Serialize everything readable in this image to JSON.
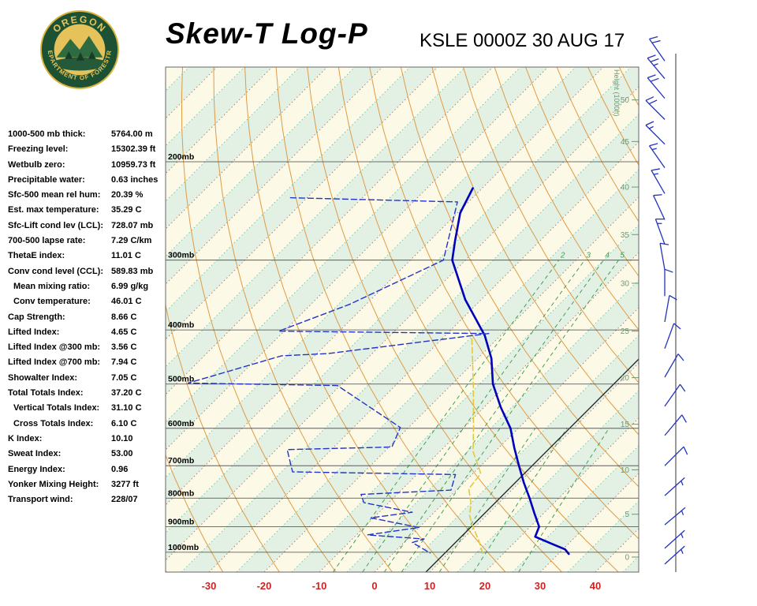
{
  "header": {
    "title": "Skew-T Log-P",
    "station": "KSLE 0000Z 30 AUG 17",
    "logo": {
      "top": "OREGON",
      "bottom": "DEPARTMENT OF FORESTRY"
    }
  },
  "indices": {
    "rows": [
      {
        "label": "1000-500 mb thick:",
        "value": "5764.00 m",
        "indent": false
      },
      {
        "label": "Freezing level:",
        "value": "15302.39 ft",
        "indent": false
      },
      {
        "label": "Wetbulb zero:",
        "value": "10959.73 ft",
        "indent": false
      },
      {
        "label": "Precipitable water:",
        "value": "0.63 inches",
        "indent": false
      },
      {
        "label": "Sfc-500 mean rel hum:",
        "value": "20.39 %",
        "indent": false
      },
      {
        "label": "Est. max temperature:",
        "value": "35.29 C",
        "indent": false
      },
      {
        "label": "Sfc-Lift cond lev (LCL):",
        "value": "728.07 mb",
        "indent": false
      },
      {
        "label": "700-500 lapse rate:",
        "value": "7.29 C/km",
        "indent": false
      },
      {
        "label": "ThetaE index:",
        "value": "11.01 C",
        "indent": false
      },
      {
        "label": "Conv cond level (CCL):",
        "value": "589.83 mb",
        "indent": false
      },
      {
        "label": "Mean mixing ratio:",
        "value": "6.99 g/kg",
        "indent": true
      },
      {
        "label": "Conv temperature:",
        "value": "46.01 C",
        "indent": true
      },
      {
        "label": "Cap Strength:",
        "value": "8.66 C",
        "indent": false
      },
      {
        "label": "Lifted Index:",
        "value": "4.65 C",
        "indent": false
      },
      {
        "label": "Lifted Index @300 mb:",
        "value": "3.56 C",
        "indent": false
      },
      {
        "label": "Lifted Index @700 mb:",
        "value": "7.94 C",
        "indent": false
      },
      {
        "label": "Showalter Index:",
        "value": "7.05 C",
        "indent": false
      },
      {
        "label": "Total Totals Index:",
        "value": "37.20 C",
        "indent": false
      },
      {
        "label": "Vertical Totals Index:",
        "value": "31.10 C",
        "indent": true
      },
      {
        "label": "Cross Totals Index:",
        "value": "6.10 C",
        "indent": true
      },
      {
        "label": "K Index:",
        "value": "10.10",
        "indent": false
      },
      {
        "label": "Sweat Index:",
        "value": "53.00",
        "indent": false
      },
      {
        "label": "Energy Index:",
        "value": "0.96",
        "indent": false
      },
      {
        "label": "Yonker Mixing Height:",
        "value": "3277 ft",
        "indent": false
      },
      {
        "label": "Transport wind:",
        "value": "228/07",
        "indent": false
      }
    ]
  },
  "chart_data": {
    "type": "line",
    "title": "Skew-T Log-P",
    "station": "KSLE 0000Z 30 AUG 17",
    "x_axis": {
      "ticks_c": [
        -30,
        -20,
        -10,
        0,
        10,
        20,
        30,
        40
      ],
      "unit": "C"
    },
    "temp_axis_range_c": [
      -130,
      55
    ],
    "pressure_axis": {
      "levels_mb": [
        200,
        300,
        400,
        500,
        600,
        700,
        800,
        900,
        1000
      ],
      "label_suffix": "mb",
      "range_mb": [
        135,
        1083
      ]
    },
    "height_axis": {
      "title": "Height (1000ft)",
      "ticks": [
        {
          "kft": 0,
          "p": 1020
        },
        {
          "kft": 5,
          "p": 855
        },
        {
          "kft": 10,
          "p": 712
        },
        {
          "kft": 15,
          "p": 590
        },
        {
          "kft": 20,
          "p": 487
        },
        {
          "kft": 25,
          "p": 402
        },
        {
          "kft": 30,
          "p": 330
        },
        {
          "kft": 35,
          "p": 270
        },
        {
          "kft": 40,
          "p": 222
        },
        {
          "kft": 45,
          "p": 184
        },
        {
          "kft": 50,
          "p": 155
        }
      ]
    },
    "mixing_ratio_lines": {
      "labeled_gkg": [
        2,
        3,
        4,
        5
      ],
      "unlabeled_gkg": [
        8,
        12,
        20
      ]
    },
    "dry_adiabats": {
      "theta_start_k": 230,
      "theta_end_k": 420,
      "step_k": 10
    },
    "isotherm_bands": {
      "step_c": 10,
      "band_width_c": 5
    },
    "reference_line": {
      "surface_temp_c": 9.3
    },
    "series": [
      {
        "name": "temperature",
        "style": "solid",
        "color": "#0000bb",
        "width": 2.6,
        "points": [
          [
            223,
            -51.7
          ],
          [
            247,
            -49.5
          ],
          [
            277,
            -45.4
          ],
          [
            300,
            -42.4
          ],
          [
            353,
            -32.9
          ],
          [
            409,
            -22.9
          ],
          [
            450,
            -17.5
          ],
          [
            500,
            -12.6
          ],
          [
            550,
            -7.0
          ],
          [
            600,
            -1.4
          ],
          [
            650,
            2.8
          ],
          [
            700,
            6.9
          ],
          [
            750,
            10.8
          ],
          [
            800,
            14.7
          ],
          [
            850,
            18.2
          ],
          [
            900,
            21.6
          ],
          [
            938,
            22.7
          ],
          [
            964,
            26.7
          ],
          [
            988,
            30.4
          ],
          [
            1007,
            31.9
          ]
        ]
      },
      {
        "name": "dewpoint",
        "style": "dashed",
        "color": "#2233cc",
        "width": 1.4,
        "points": [
          [
            232,
            -83
          ],
          [
            236,
            -52
          ],
          [
            300,
            -44
          ],
          [
            360,
            -53
          ],
          [
            402,
            -61
          ],
          [
            406,
            -22.5
          ],
          [
            441,
            -48
          ],
          [
            445,
            -56
          ],
          [
            498,
            -68
          ],
          [
            503,
            -40.5
          ],
          [
            598,
            -21.5
          ],
          [
            648,
            -19.5
          ],
          [
            655,
            -38
          ],
          [
            718,
            -33
          ],
          [
            726,
            -3
          ],
          [
            774,
            -1
          ],
          [
            788,
            -16.5
          ],
          [
            815,
            -14.5
          ],
          [
            848,
            -4
          ],
          [
            868,
            -10.5
          ],
          [
            903,
            0
          ],
          [
            931,
            -8
          ],
          [
            947,
            3
          ],
          [
            961,
            1.5
          ],
          [
            1003,
            6.6
          ]
        ]
      },
      {
        "name": "wetbulb",
        "style": "dashed",
        "color": "#e3c83f",
        "width": 1.6,
        "points": [
          [
            415,
            -24.6
          ],
          [
            505,
            -15.7
          ],
          [
            600,
            -8.1
          ],
          [
            660,
            -4
          ],
          [
            723,
            1.4
          ],
          [
            770,
            2
          ],
          [
            817,
            5
          ],
          [
            860,
            7
          ],
          [
            906,
            10
          ],
          [
            950,
            13
          ],
          [
            1017,
            16.9
          ]
        ]
      }
    ],
    "wind_barbs": [
      {
        "p": 132,
        "dir": 145,
        "spd": 20
      },
      {
        "p": 142,
        "dir": 140,
        "spd": 25
      },
      {
        "p": 154,
        "dir": 140,
        "spd": 20
      },
      {
        "p": 168,
        "dir": 135,
        "spd": 20
      },
      {
        "p": 186,
        "dir": 135,
        "spd": 15
      },
      {
        "p": 205,
        "dir": 145,
        "spd": 15
      },
      {
        "p": 228,
        "dir": 150,
        "spd": 15
      },
      {
        "p": 254,
        "dir": 155,
        "spd": 10
      },
      {
        "p": 281,
        "dir": 160,
        "spd": 15
      },
      {
        "p": 312,
        "dir": 170,
        "spd": 10
      },
      {
        "p": 348,
        "dir": 180,
        "spd": 10
      },
      {
        "p": 387,
        "dir": 190,
        "spd": 10
      },
      {
        "p": 432,
        "dir": 200,
        "spd": 10
      },
      {
        "p": 486,
        "dir": 210,
        "spd": 10
      },
      {
        "p": 548,
        "dir": 215,
        "spd": 10
      },
      {
        "p": 618,
        "dir": 220,
        "spd": 10
      },
      {
        "p": 700,
        "dir": 225,
        "spd": 10
      },
      {
        "p": 792,
        "dir": 228,
        "spd": 5
      },
      {
        "p": 893,
        "dir": 230,
        "spd": 5
      },
      {
        "p": 984,
        "dir": 228,
        "spd": 7
      },
      {
        "p": 1050,
        "dir": 228,
        "spd": 7
      }
    ],
    "colors": {
      "plot_bg": "#fcfae6",
      "band": "#e2f1e4",
      "isotherm_major": "#cc6655",
      "isotherm_minor": "#6fbcab",
      "dry_adiabat": "#e09a44",
      "mixing_ratio": "#44a055",
      "pressure_line": "#444444",
      "reference_line": "#222222",
      "x_tick_label": "#cc2222",
      "height_label": "#6a9a72",
      "barb": "#2233bb",
      "frame": "#666666"
    }
  }
}
